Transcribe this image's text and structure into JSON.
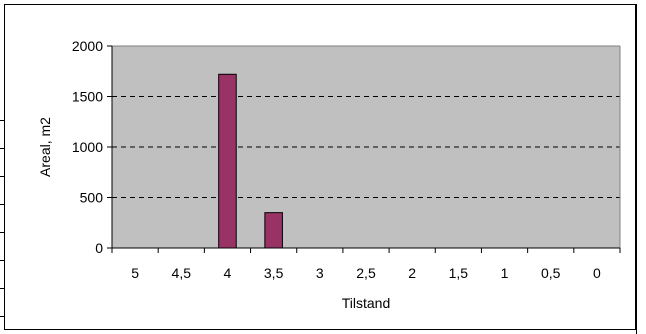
{
  "chart_data": {
    "type": "bar",
    "xlabel": "Tilstand",
    "ylabel": "Areal, m2",
    "categories": [
      "5",
      "4,5",
      "4",
      "3,5",
      "3",
      "2,5",
      "2",
      "1,5",
      "1",
      "0,5",
      "0"
    ],
    "values": [
      0,
      0,
      1720,
      350,
      0,
      0,
      0,
      0,
      0,
      0,
      0
    ],
    "ylim": [
      0,
      2000
    ],
    "yticks": [
      "0",
      "500",
      "1000",
      "1500",
      "2000"
    ],
    "ytick_values": [
      0,
      500,
      1000,
      1500,
      2000
    ],
    "grid": "horizontal dashed",
    "colors": {
      "plot_background": "#c0c0c0",
      "bar_fill": "#993366",
      "bar_stroke": "#000000",
      "gridline": "#000000"
    }
  }
}
